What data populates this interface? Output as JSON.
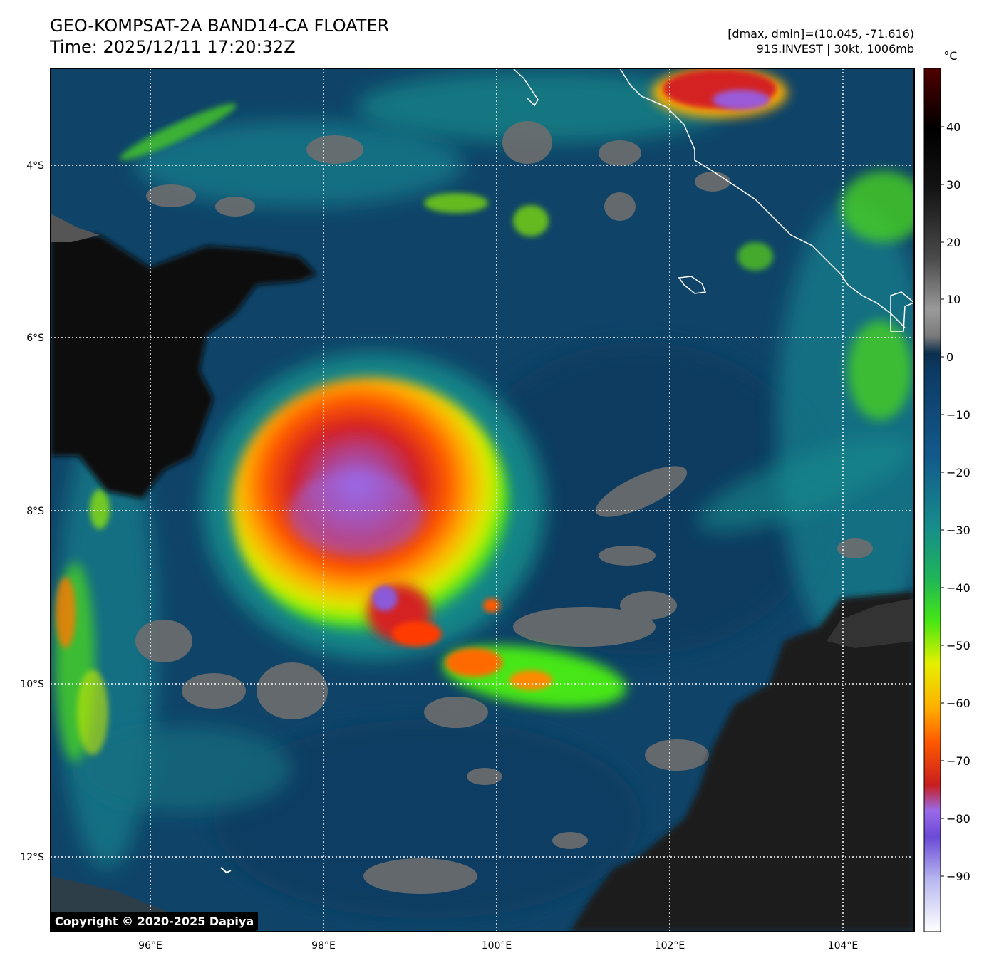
{
  "header": {
    "title_line1": "GEO-KOMPSAT-2A BAND14-CA FLOATER",
    "title_line2": "Time: 2025/12/11 17:20:32Z",
    "range_text": "[dmax, dmin]=(10.045, -71.616)",
    "storm_text": "91S.INVEST | 30kt, 1006mb"
  },
  "map": {
    "lon_ticks": [
      "96°E",
      "98°E",
      "100°E",
      "102°E",
      "104°E"
    ],
    "lat_ticks": [
      "4°S",
      "6°S",
      "8°S",
      "10°S",
      "12°S"
    ],
    "lon_range": [
      94.83,
      104.83
    ],
    "lat_range": [
      -12.83,
      -2.83
    ],
    "gridlines": true
  },
  "colorbar": {
    "unit": "°C",
    "ticks": [
      "40",
      "30",
      "20",
      "10",
      "0",
      "−10",
      "−20",
      "−30",
      "−40",
      "−50",
      "−60",
      "−70",
      "−80",
      "−90"
    ],
    "range": [
      -100,
      50
    ],
    "colors": [
      "#ffffff",
      "#b8b8f0",
      "#6a4ad6",
      "#9a6ae8",
      "#c81e1e",
      "#ff5a00",
      "#ffb000",
      "#e6ef00",
      "#46e614",
      "#1eb45a",
      "#168c8c",
      "#125a8c",
      "#0c3a64",
      "#1e1e1e",
      "#7a7a7a",
      "#9a9a9a",
      "#141414",
      "#000000",
      "#500000"
    ]
  },
  "copyright": "Copyright © 2020-2025 Dapiya"
}
